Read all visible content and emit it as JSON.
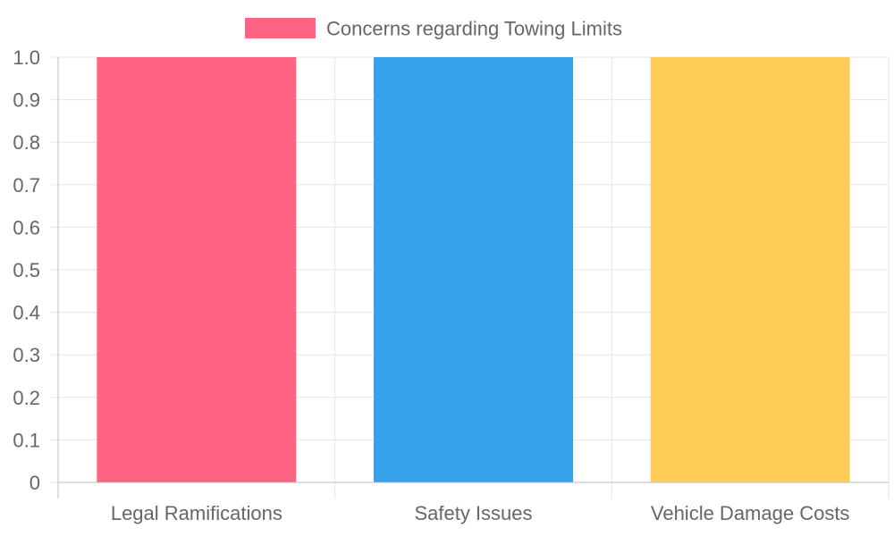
{
  "chart_data": {
    "type": "bar",
    "categories": [
      "Legal Ramifications",
      "Safety Issues",
      "Vehicle Damage Costs"
    ],
    "series": [
      {
        "name": "Concerns regarding Towing Limits",
        "values": [
          1,
          1,
          1
        ],
        "colors": [
          "#ff6384",
          "#36a2eb",
          "#ffcd56"
        ]
      }
    ],
    "title": "",
    "xlabel": "",
    "ylabel": "",
    "ylim": [
      0,
      1
    ],
    "yticks": [
      "0",
      "0.1",
      "0.2",
      "0.3",
      "0.4",
      "0.5",
      "0.6",
      "0.7",
      "0.8",
      "0.9",
      "1.0"
    ],
    "grid": true,
    "legend_position": "top"
  }
}
